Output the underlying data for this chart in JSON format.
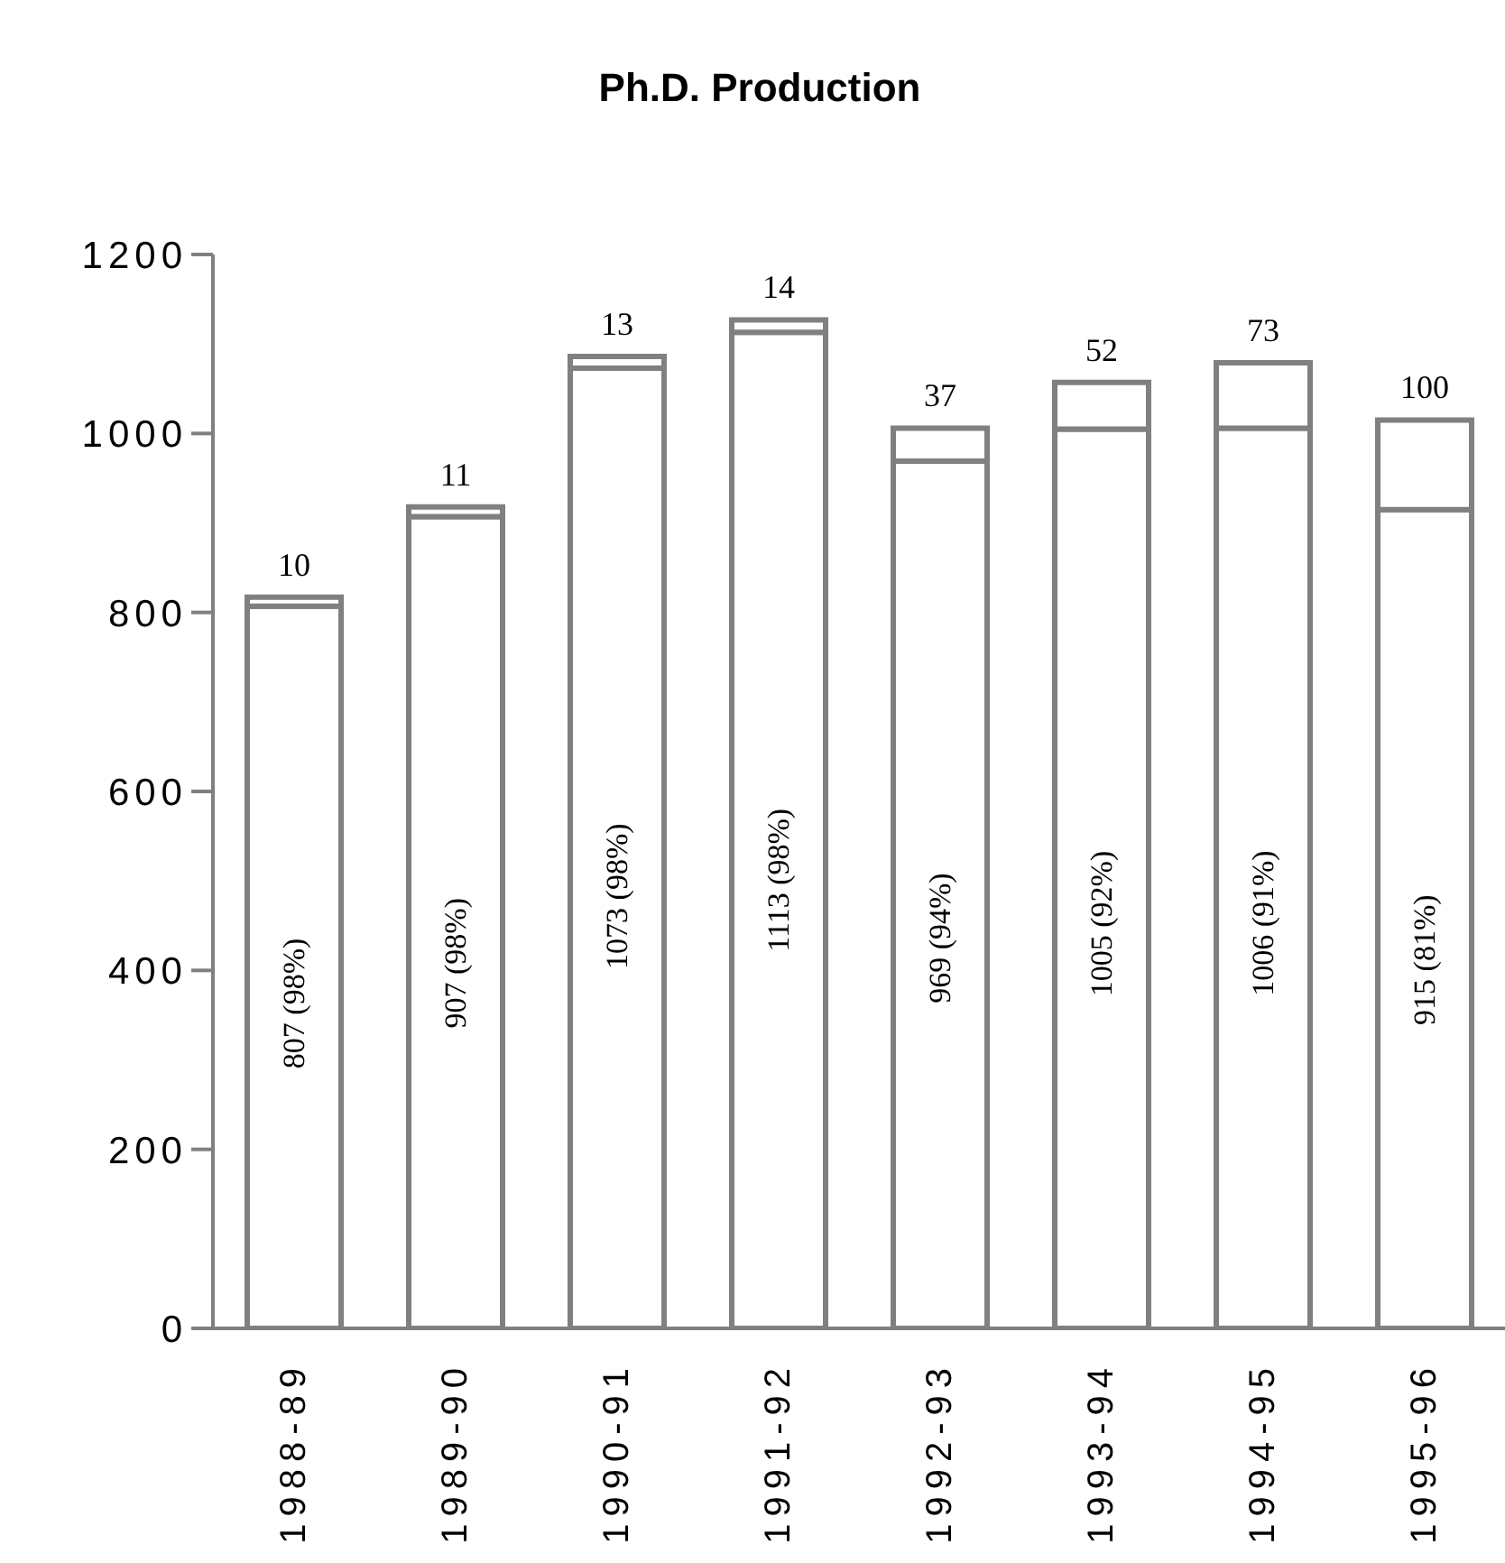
{
  "chart_data": {
    "type": "bar",
    "title": "Ph.D. Production",
    "categories": [
      "1988-89",
      "1989-90",
      "1990-91",
      "1991-92",
      "1992-93",
      "1993-94",
      "1994-95",
      "1995-96"
    ],
    "stacked": true,
    "series": [
      {
        "color": "#ffffff",
        "values": [
          807,
          907,
          1073,
          1113,
          969,
          1005,
          1006,
          915
        ],
        "value_labels": [
          "807  (98%)",
          "907  (98%)",
          "1073  (98%)",
          "1113  (98%)",
          "969 (94%)",
          "1005 (92%)",
          "1006 (91%)",
          "915 (81%)"
        ]
      },
      {
        "color": "#ffffff",
        "values": [
          10,
          11,
          13,
          14,
          37,
          52,
          73,
          100
        ],
        "value_labels": [
          "10",
          "11",
          "13",
          "14",
          "37",
          "52",
          "73",
          "100"
        ]
      }
    ],
    "ylim": [
      0,
      1200
    ],
    "yticks": [
      0,
      200,
      400,
      600,
      800,
      1000,
      1200
    ],
    "grid": false,
    "legend": false
  }
}
